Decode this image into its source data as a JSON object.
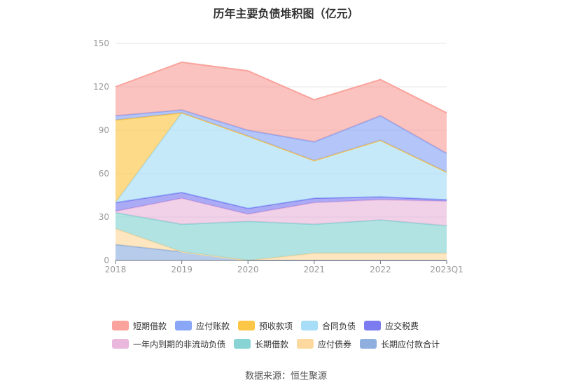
{
  "chart_data": {
    "type": "area",
    "stacked": true,
    "title": "历年主要负债堆积图（亿元）",
    "categories": [
      "2018",
      "2019",
      "2020",
      "2021",
      "2022",
      "2023Q1"
    ],
    "ylim": [
      0,
      150
    ],
    "yticks": [
      0,
      30,
      60,
      90,
      120,
      150
    ],
    "grid": true,
    "legend_position": "bottom",
    "series": [
      {
        "name": "长期应付款合计",
        "color": "#8fb0de",
        "values": [
          11,
          6,
          0,
          0,
          0,
          0
        ]
      },
      {
        "name": "应付债券",
        "color": "#fdd9a0",
        "values": [
          11,
          0,
          0,
          5,
          5,
          5
        ]
      },
      {
        "name": "长期借款",
        "color": "#88d4d4",
        "values": [
          11,
          19,
          27,
          20,
          23,
          19
        ]
      },
      {
        "name": "一年内到期的非流动负债",
        "color": "#e9b8dc",
        "values": [
          1,
          18,
          5,
          15,
          14,
          17
        ]
      },
      {
        "name": "应交税费",
        "color": "#7c7cf0",
        "values": [
          6,
          4,
          4,
          3,
          2,
          1
        ]
      },
      {
        "name": "合同负债",
        "color": "#a8ddf8",
        "values": [
          0,
          55,
          50,
          26,
          39,
          19
        ]
      },
      {
        "name": "预收款项",
        "color": "#fcc646",
        "values": [
          57,
          0,
          0,
          0,
          0,
          0
        ]
      },
      {
        "name": "应付账款",
        "color": "#8aa6f6",
        "values": [
          3,
          2,
          4,
          13,
          17,
          13
        ]
      },
      {
        "name": "短期借款",
        "color": "#f9a39c",
        "values": [
          20,
          33,
          41,
          29,
          25,
          28
        ]
      }
    ]
  },
  "legend_rows": [
    [
      "短期借款",
      "应付账款",
      "预收款项",
      "合同负债",
      "应交税费"
    ],
    [
      "一年内到期的非流动负债",
      "长期借款",
      "应付债券",
      "长期应付款合计"
    ]
  ],
  "source_note": "数据来源：恒生聚源"
}
